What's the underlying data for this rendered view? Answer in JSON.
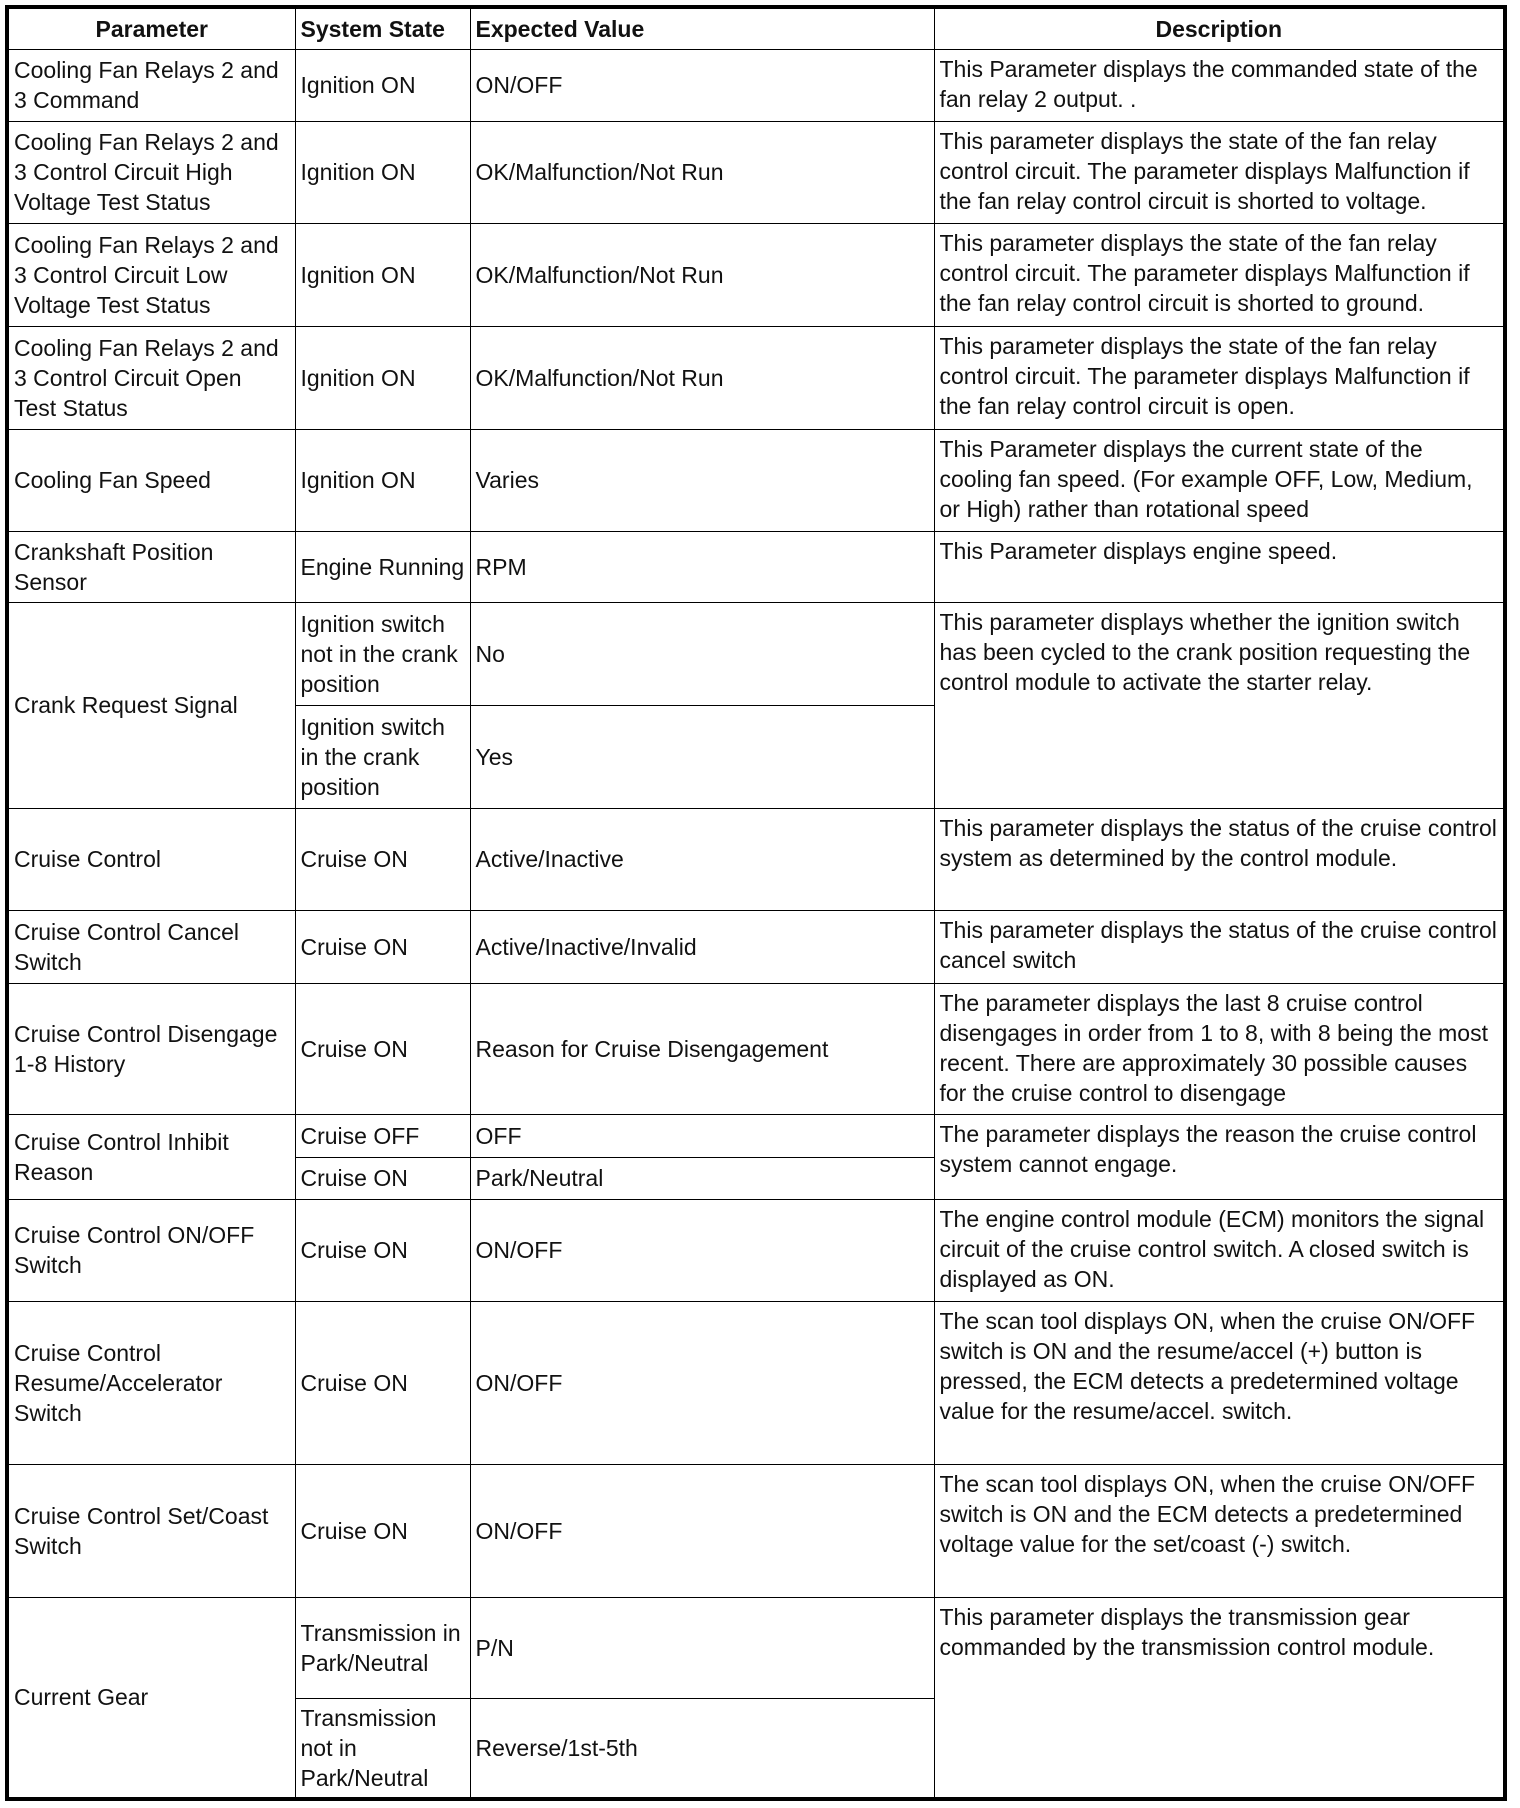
{
  "headers": [
    "Parameter",
    "System State",
    "Expected Value",
    "Description"
  ],
  "rows": [
    {
      "parameter": "Cooling Fan Relays 2 and 3 Command",
      "states": [
        {
          "state": "Ignition ON",
          "value": "ON/OFF"
        }
      ],
      "description": "This Parameter displays the commanded state of the fan relay 2 output. ."
    },
    {
      "parameter": "Cooling Fan Relays 2 and 3 Control Circuit High Voltage Test Status",
      "states": [
        {
          "state": "Ignition ON",
          "value": "OK/Malfunction/Not Run"
        }
      ],
      "description": "This parameter displays the state of the fan relay control circuit. The parameter displays Malfunction if the fan relay control circuit is shorted to voltage."
    },
    {
      "parameter": "Cooling Fan Relays 2 and 3 Control Circuit Low Voltage Test Status",
      "states": [
        {
          "state": "Ignition ON",
          "value": "OK/Malfunction/Not Run"
        }
      ],
      "description": "This parameter displays the state of the fan relay control circuit. The parameter displays Malfunction if the fan relay control circuit is shorted to ground."
    },
    {
      "parameter": "Cooling Fan Relays 2 and 3 Control Circuit Open Test Status",
      "states": [
        {
          "state": "Ignition ON",
          "value": "OK/Malfunction/Not Run"
        }
      ],
      "description": "This parameter displays the state of the fan relay control circuit. The parameter displays Malfunction if the fan relay control circuit is open."
    },
    {
      "parameter": "Cooling Fan Speed",
      "states": [
        {
          "state": "Ignition ON",
          "value": "Varies"
        }
      ],
      "description": "This Parameter displays the current state of the cooling fan speed. (For example OFF, Low, Medium, or High) rather than rotational speed"
    },
    {
      "parameter": "Crankshaft Position Sensor",
      "states": [
        {
          "state": "Engine Running",
          "value": "RPM"
        }
      ],
      "description": "This Parameter displays engine speed."
    },
    {
      "parameter": "Crank Request Signal",
      "states": [
        {
          "state": "Ignition switch not in the crank position",
          "value": "No"
        },
        {
          "state": "Ignition switch in the crank position",
          "value": "Yes"
        }
      ],
      "description": "This parameter displays whether the ignition switch has been cycled to the crank position requesting the control module to activate the starter relay."
    },
    {
      "parameter": "Cruise Control",
      "states": [
        {
          "state": "Cruise ON",
          "value": "Active/Inactive"
        }
      ],
      "description": "This parameter displays the status of the cruise control system as determined by the control module."
    },
    {
      "parameter": "Cruise Control Cancel Switch",
      "states": [
        {
          "state": "Cruise ON",
          "value": "Active/Inactive/Invalid"
        }
      ],
      "description": "This parameter displays the status of the cruise control cancel switch"
    },
    {
      "parameter": "Cruise Control Disengage 1-8 History",
      "states": [
        {
          "state": "Cruise ON",
          "value": "Reason for Cruise Disengagement"
        }
      ],
      "description": "The parameter displays the last 8 cruise control disengages in order from 1 to 8, with 8 being the most recent. There are approximately 30 possible causes for the cruise control to disengage"
    },
    {
      "parameter": "Cruise Control Inhibit Reason",
      "states": [
        {
          "state": "Cruise OFF",
          "value": "OFF"
        },
        {
          "state": "Cruise ON",
          "value": "Park/Neutral"
        }
      ],
      "description": "The parameter displays the reason the cruise control system cannot engage."
    },
    {
      "parameter": "Cruise Control ON/OFF Switch",
      "states": [
        {
          "state": "Cruise ON",
          "value": "ON/OFF"
        }
      ],
      "description": "The engine control module (ECM) monitors the signal circuit of the cruise control switch. A closed switch is displayed as ON."
    },
    {
      "parameter": "Cruise Control Resume/Accelerator Switch",
      "states": [
        {
          "state": "Cruise ON",
          "value": "ON/OFF"
        }
      ],
      "description": "The scan tool displays ON, when the cruise ON/OFF switch is ON and the resume/accel (+) button is pressed, the ECM detects a predetermined voltage value for the resume/accel. switch."
    },
    {
      "parameter": "Cruise Control Set/Coast Switch",
      "states": [
        {
          "state": "Cruise ON",
          "value": "ON/OFF"
        }
      ],
      "description": "The scan tool displays ON, when the cruise ON/OFF switch is ON and the ECM detects a predetermined voltage value for the set/coast (-) switch."
    },
    {
      "parameter": "Current Gear",
      "states": [
        {
          "state": "Transmission in Park/Neutral",
          "value": "P/N"
        },
        {
          "state": "Transmission not in Park/Neutral",
          "value": "Reverse/1st-5th"
        }
      ],
      "description": "This parameter displays the transmission gear commanded by the transmission control module."
    }
  ]
}
